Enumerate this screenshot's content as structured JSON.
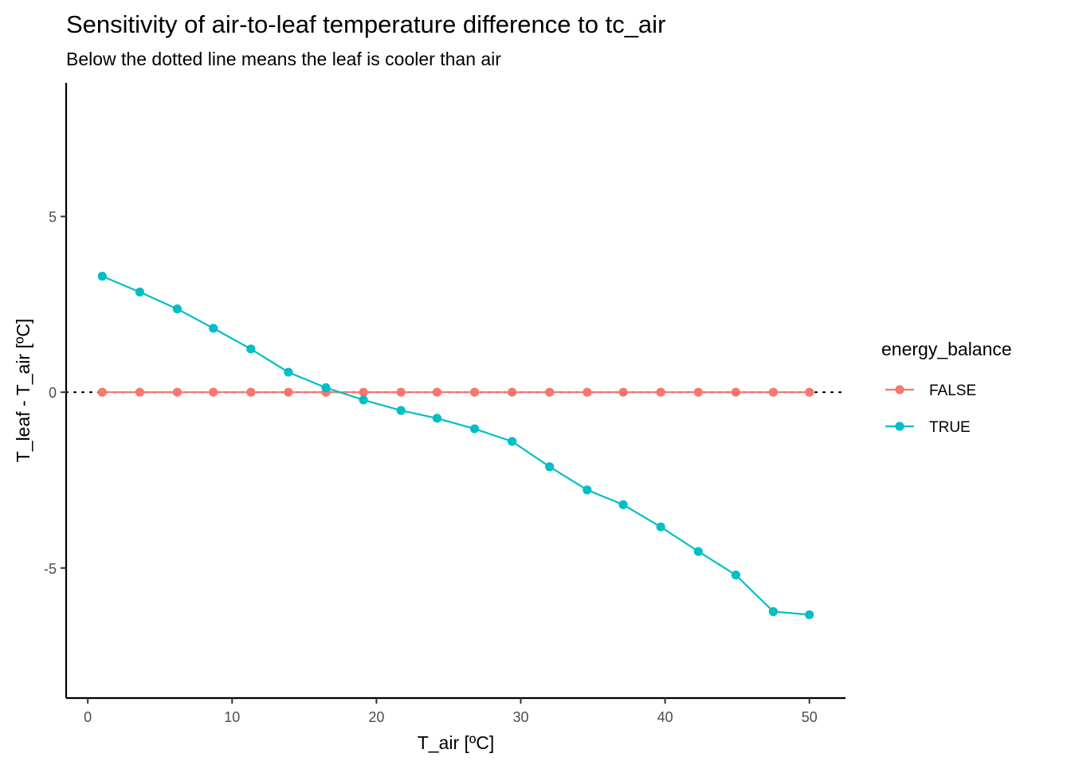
{
  "chart_data": {
    "type": "line",
    "title": "Sensitivity of air-to-leaf temperature difference to tc_air",
    "subtitle": "Below the dotted line means the leaf is cooler than air",
    "xlabel": "T_air [ºC]",
    "ylabel": "T_leaf - T_air [ºC]",
    "xlim": [
      -1.5,
      52.5
    ],
    "ylim": [
      -8.7,
      8.8
    ],
    "x_ticks": [
      0,
      10,
      20,
      30,
      40,
      50
    ],
    "y_ticks": [
      -5,
      0,
      5
    ],
    "x_tick_labels": [
      "0",
      "10",
      "20",
      "30",
      "40",
      "50"
    ],
    "y_tick_labels": [
      "-5",
      "0",
      "5"
    ],
    "grid": false,
    "reference_line": {
      "y": 0,
      "style": "dotted",
      "color": "#000000"
    },
    "legend": {
      "title": "energy_balance",
      "position": "right"
    },
    "x": [
      1.0,
      3.6,
      6.2,
      8.7,
      11.3,
      13.9,
      16.5,
      19.1,
      21.7,
      24.2,
      26.8,
      29.4,
      32.0,
      34.6,
      37.1,
      39.7,
      42.3,
      44.9,
      47.5,
      50.0
    ],
    "series": [
      {
        "name": "FALSE",
        "color": "#F8766D",
        "values": [
          0,
          0,
          0,
          0,
          0,
          0,
          0,
          0,
          0,
          0,
          0,
          0,
          0,
          0,
          0,
          0,
          0,
          0,
          0,
          0
        ]
      },
      {
        "name": "TRUE",
        "color": "#00BFC4",
        "values": [
          3.3,
          2.85,
          2.37,
          1.82,
          1.23,
          0.57,
          0.13,
          -0.22,
          -0.52,
          -0.74,
          -1.04,
          -1.4,
          -2.12,
          -2.78,
          -3.2,
          -3.83,
          -4.53,
          -5.2,
          -6.24,
          -6.33
        ]
      }
    ]
  }
}
